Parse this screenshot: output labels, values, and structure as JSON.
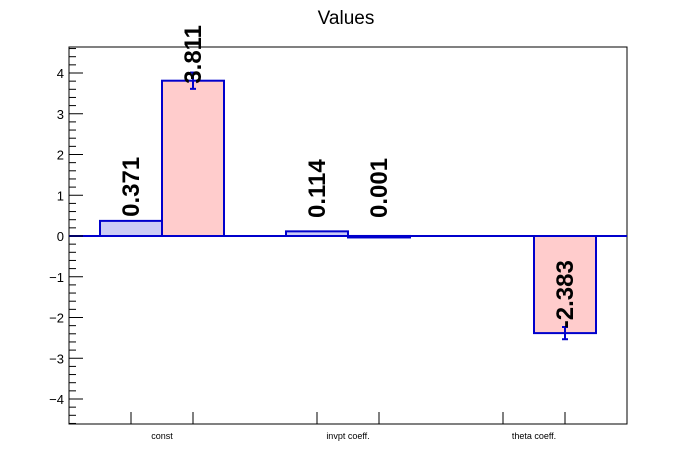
{
  "chart_data": {
    "type": "bar",
    "title": "Values",
    "categories": [
      "const",
      "invpt coeff.",
      "theta coeff."
    ],
    "series": [
      {
        "values": [
          0.371,
          0.114,
          null
        ],
        "errors": [
          0,
          0,
          0
        ],
        "fill": "#ccccf5",
        "stroke": "#0000cc"
      },
      {
        "values": [
          3.811,
          0.001,
          -2.383
        ],
        "errors": [
          0.2,
          0,
          0.15
        ],
        "fill": "#ffcccc",
        "stroke": "#0000cc"
      }
    ],
    "data_labels": [
      [
        "0.371",
        "0.114",
        ""
      ],
      [
        "3.811",
        "0.001",
        "-2.383"
      ]
    ],
    "yticks": [
      -4,
      -3,
      -2,
      -1,
      0,
      1,
      2,
      3,
      4
    ],
    "ytick_labels": [
      "−4",
      "−3",
      "−2",
      "−1",
      "0",
      "1",
      "2",
      "3",
      "4"
    ],
    "ylim": [
      -4.6,
      4.6
    ],
    "xlabel": "",
    "ylabel": "",
    "grid": false,
    "legend": "none"
  }
}
